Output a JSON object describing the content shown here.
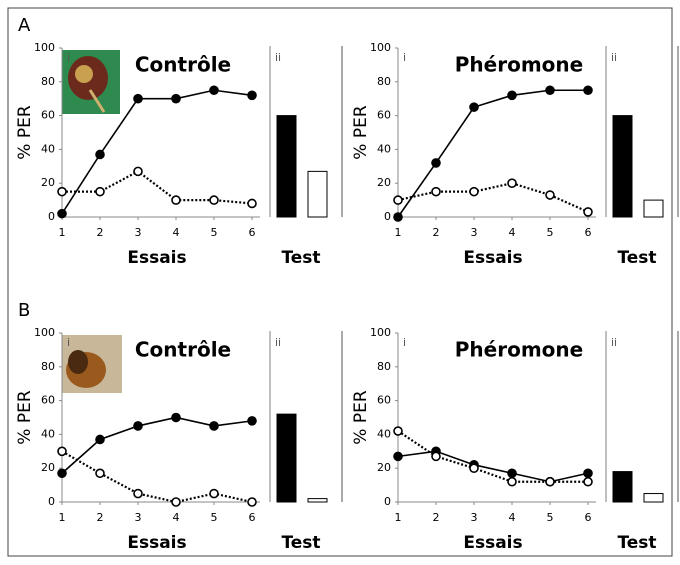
{
  "chart_data": [
    {
      "type": "line",
      "figure_label": "A",
      "panel_label": "i",
      "title": "Contrôle",
      "xlabel": "Essais",
      "ylabel": "% PER",
      "x": [
        1,
        2,
        3,
        4,
        5,
        6
      ],
      "xlim": [
        1,
        6
      ],
      "xticks": [
        1,
        2,
        3,
        4,
        5,
        6
      ],
      "ylim": [
        0,
        100
      ],
      "yticks": [
        0,
        20,
        40,
        60,
        80,
        100
      ],
      "series": [
        {
          "color": "#000000",
          "marker": "filled",
          "dashed": false,
          "values": [
            2,
            37,
            70,
            70,
            75,
            72
          ]
        },
        {
          "color": "#000000",
          "marker": "open",
          "dashed": true,
          "values": [
            15,
            15,
            27,
            10,
            10,
            8
          ]
        }
      ]
    },
    {
      "type": "bar",
      "panel_label": "ii",
      "xlabel": "Test",
      "ylim": [
        0,
        100
      ],
      "values": [
        60,
        27
      ],
      "colors": [
        "#000000",
        "#ffffff"
      ]
    },
    {
      "type": "line",
      "panel_label": "i",
      "title": "Phéromone",
      "xlabel": "Essais",
      "ylabel": "% PER",
      "x": [
        1,
        2,
        3,
        4,
        5,
        6
      ],
      "xlim": [
        1,
        6
      ],
      "xticks": [
        1,
        2,
        3,
        4,
        5,
        6
      ],
      "ylim": [
        0,
        100
      ],
      "yticks": [
        0,
        20,
        40,
        60,
        80,
        100
      ],
      "series": [
        {
          "color": "#000000",
          "marker": "filled",
          "dashed": false,
          "values": [
            0,
            32,
            65,
            72,
            75,
            75
          ]
        },
        {
          "color": "#000000",
          "marker": "open",
          "dashed": true,
          "values": [
            10,
            15,
            15,
            20,
            13,
            3
          ]
        }
      ]
    },
    {
      "type": "bar",
      "panel_label": "ii",
      "xlabel": "Test",
      "ylim": [
        0,
        100
      ],
      "values": [
        60,
        10
      ],
      "colors": [
        "#000000",
        "#ffffff"
      ]
    },
    {
      "type": "line",
      "figure_label": "B",
      "panel_label": "i",
      "title": "Contrôle",
      "xlabel": "Essais",
      "ylabel": "% PER",
      "x": [
        1,
        2,
        3,
        4,
        5,
        6
      ],
      "xlim": [
        1,
        6
      ],
      "xticks": [
        1,
        2,
        3,
        4,
        5,
        6
      ],
      "ylim": [
        0,
        100
      ],
      "yticks": [
        0,
        20,
        40,
        60,
        80,
        100
      ],
      "series": [
        {
          "color": "#000000",
          "marker": "filled",
          "dashed": false,
          "values": [
            17,
            37,
            45,
            50,
            45,
            48
          ]
        },
        {
          "color": "#000000",
          "marker": "open",
          "dashed": true,
          "values": [
            30,
            17,
            5,
            0,
            5,
            0
          ]
        }
      ]
    },
    {
      "type": "bar",
      "panel_label": "ii",
      "xlabel": "Test",
      "ylim": [
        0,
        100
      ],
      "values": [
        52,
        2
      ],
      "colors": [
        "#000000",
        "#ffffff"
      ]
    },
    {
      "type": "line",
      "panel_label": "i",
      "title": "Phéromone",
      "xlabel": "Essais",
      "ylabel": "% PER",
      "x": [
        1,
        2,
        3,
        4,
        5,
        6
      ],
      "xlim": [
        1,
        6
      ],
      "xticks": [
        1,
        2,
        3,
        4,
        5,
        6
      ],
      "ylim": [
        0,
        100
      ],
      "yticks": [
        0,
        20,
        40,
        60,
        80,
        100
      ],
      "series": [
        {
          "color": "#000000",
          "marker": "filled",
          "dashed": false,
          "values": [
            27,
            30,
            22,
            17,
            12,
            17
          ]
        },
        {
          "color": "#000000",
          "marker": "open",
          "dashed": true,
          "values": [
            42,
            27,
            20,
            12,
            12,
            12
          ]
        }
      ]
    },
    {
      "type": "bar",
      "panel_label": "ii",
      "xlabel": "Test",
      "ylim": [
        0,
        100
      ],
      "values": [
        18,
        5
      ],
      "colors": [
        "#000000",
        "#ffffff"
      ]
    }
  ]
}
